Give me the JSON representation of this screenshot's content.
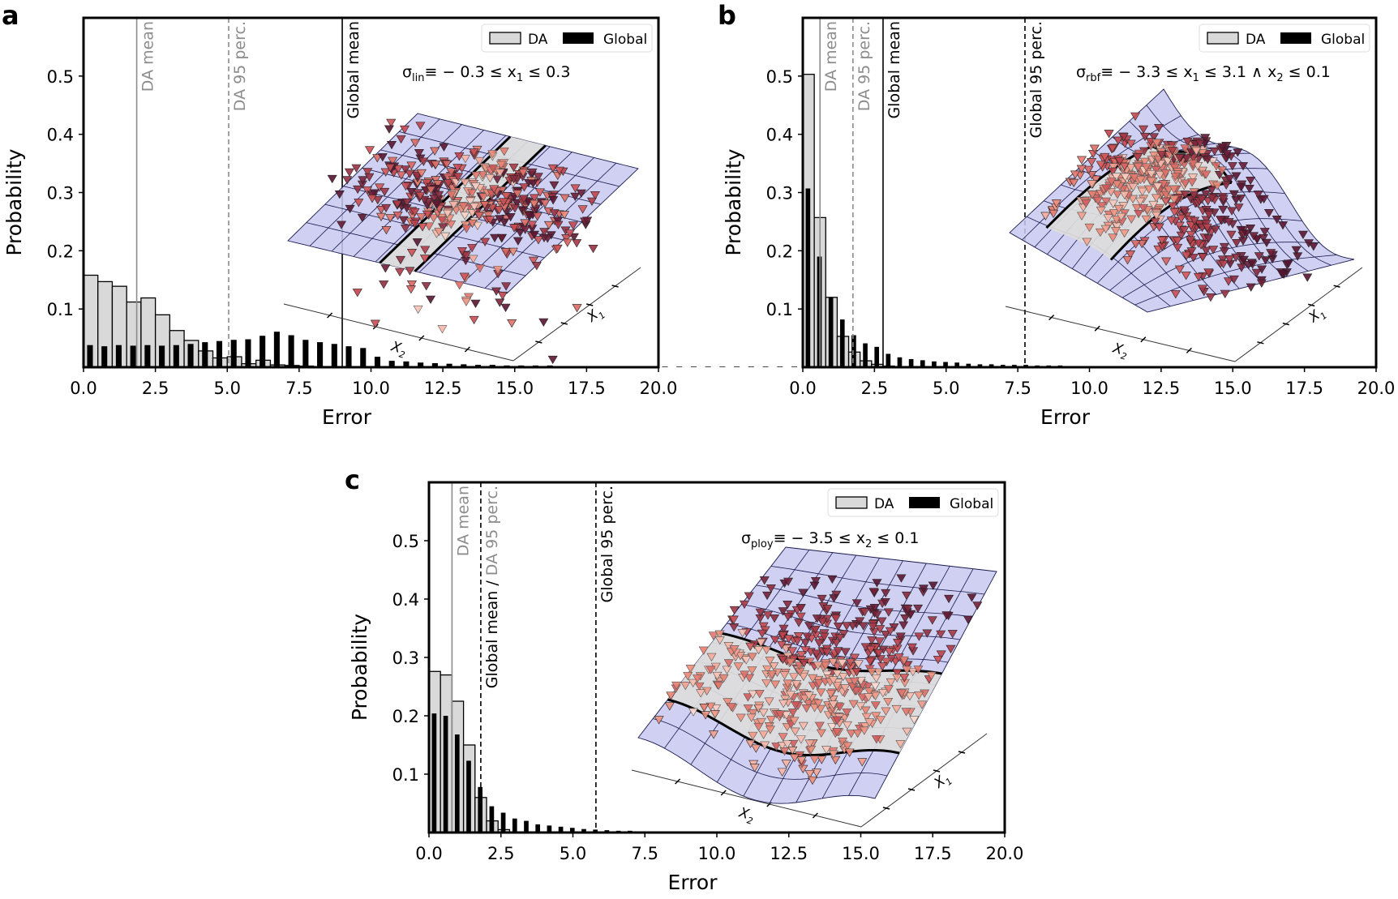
{
  "chart_data": [
    {
      "panel": "a",
      "type": "bar",
      "title": "",
      "xlabel": "Error",
      "ylabel": "Probability",
      "xlim": [
        0,
        20
      ],
      "ylim": [
        0,
        0.6
      ],
      "xticks": [
        "0.0",
        "2.5",
        "5.0",
        "7.5",
        "10.0",
        "12.5",
        "15.0",
        "17.5",
        "20.0"
      ],
      "yticks": [
        "0.1",
        "0.2",
        "0.3",
        "0.4",
        "0.5"
      ],
      "bin_width": 0.5,
      "legend": {
        "position": "top-right",
        "entries": [
          "DA",
          "Global"
        ]
      },
      "annotation": {
        "sigma": "σ",
        "sub": "lin",
        "rest": "≡ − 0.3 ≤ x",
        "sub1": "1",
        "rest2": " ≤ 0.3"
      },
      "series": [
        {
          "name": "DA",
          "values": [
            0.158,
            0.147,
            0.139,
            0.112,
            0.119,
            0.09,
            0.063,
            0.046,
            0.028,
            0.016,
            0.018,
            0.006,
            0.012,
            0.004,
            0.003,
            0.002,
            0.001,
            0.001,
            0.001,
            0.001,
            0.001,
            0.0,
            0.0,
            0.0,
            0.0,
            0.0,
            0.0,
            0.0,
            0.0,
            0.0
          ]
        },
        {
          "name": "Global",
          "values": [
            0.038,
            0.036,
            0.038,
            0.037,
            0.038,
            0.037,
            0.038,
            0.04,
            0.043,
            0.045,
            0.047,
            0.048,
            0.054,
            0.061,
            0.055,
            0.047,
            0.043,
            0.04,
            0.036,
            0.033,
            0.018,
            0.011,
            0.01,
            0.008,
            0.007,
            0.006,
            0.005,
            0.004,
            0.004,
            0.003,
            0.003,
            0.003,
            0.003,
            0.002,
            0.002,
            0.002,
            0.002,
            0.002,
            0.002,
            0.002,
            0.001,
            0.001,
            0.001,
            0.001,
            0.001,
            0.001,
            0.001,
            0.001,
            0.001,
            0.001,
            0.001,
            0.001,
            0.001,
            0.001,
            0.001,
            0.001,
            0.001,
            0.001,
            0.001,
            0.001
          ]
        }
      ],
      "vlines": [
        {
          "label": "DA mean",
          "x": 1.85,
          "style": "solid",
          "color": "#8c8c8c"
        },
        {
          "label": "DA 95 perc.",
          "x": 5.05,
          "style": "dashed",
          "color": "#8c8c8c"
        },
        {
          "label": "Global mean",
          "x": 9.0,
          "style": "solid",
          "color": "#000000"
        }
      ],
      "inset": {
        "kind": "plane",
        "axis_labels": [
          "X",
          "2",
          "X",
          "1"
        ]
      }
    },
    {
      "panel": "b",
      "type": "bar",
      "title": "",
      "xlabel": "Error",
      "ylabel": "Probability",
      "xlim": [
        0,
        20
      ],
      "ylim": [
        0,
        0.6
      ],
      "xticks": [
        "0.0",
        "2.5",
        "5.0",
        "7.5",
        "10.0",
        "12.5",
        "15.0",
        "17.5",
        "20.0"
      ],
      "yticks": [
        "0.1",
        "0.2",
        "0.3",
        "0.4",
        "0.5"
      ],
      "bin_width": 0.4,
      "legend": {
        "position": "top-right",
        "entries": [
          "DA",
          "Global"
        ]
      },
      "annotation": {
        "sigma": "σ",
        "sub": "rbf",
        "rest": "≡ − 3.3 ≤ x",
        "sub1": "1",
        "rest2": " ≤ 3.1 ∧ x",
        "sub2": "2",
        "rest3": " ≤ 0.1"
      },
      "series": [
        {
          "name": "DA",
          "values": [
            0.503,
            0.257,
            0.12,
            0.053,
            0.026,
            0.011,
            0.005,
            0.002,
            0.001,
            0.0
          ]
        },
        {
          "name": "Global",
          "values": [
            0.307,
            0.19,
            0.12,
            0.082,
            0.055,
            0.041,
            0.035,
            0.023,
            0.017,
            0.014,
            0.012,
            0.01,
            0.009,
            0.008,
            0.006,
            0.005,
            0.005,
            0.004,
            0.004,
            0.004,
            0.003,
            0.003,
            0.003,
            0.002,
            0.002,
            0.002,
            0.002,
            0.002,
            0.001,
            0.001,
            0.001,
            0.001,
            0.001,
            0.001,
            0.001,
            0.001,
            0.001,
            0.001,
            0.001,
            0.001
          ]
        }
      ],
      "vlines": [
        {
          "label": "DA mean",
          "x": 0.6,
          "style": "solid",
          "color": "#8c8c8c"
        },
        {
          "label": "DA 95 perc.",
          "x": 1.75,
          "style": "dashed",
          "color": "#8c8c8c"
        },
        {
          "label": "Global mean",
          "x": 2.8,
          "style": "solid",
          "color": "#000000"
        },
        {
          "label": "Global 95 perc.",
          "x": 7.75,
          "style": "dashed",
          "color": "#000000"
        }
      ],
      "inset": {
        "kind": "rbf",
        "axis_labels": [
          "X",
          "2",
          "X",
          "1"
        ]
      }
    },
    {
      "panel": "c",
      "type": "bar",
      "title": "",
      "xlabel": "Error",
      "ylabel": "Probability",
      "xlim": [
        0,
        20
      ],
      "ylim": [
        0,
        0.6
      ],
      "xticks": [
        "0.0",
        "2.5",
        "5.0",
        "7.5",
        "10.0",
        "12.5",
        "15.0",
        "17.5",
        "20.0"
      ],
      "yticks": [
        "0.1",
        "0.2",
        "0.3",
        "0.4",
        "0.5"
      ],
      "bin_width": 0.4,
      "legend": {
        "position": "top-right",
        "entries": [
          "DA",
          "Global"
        ]
      },
      "annotation": {
        "sigma": "σ",
        "sub": "ploy",
        "rest": "≡ − 3.5 ≤ x",
        "sub1": "2",
        "rest2": " ≤ 0.1"
      },
      "series": [
        {
          "name": "DA",
          "values": [
            0.276,
            0.27,
            0.225,
            0.15,
            0.06,
            0.02,
            0.005,
            0.001,
            0.0
          ]
        },
        {
          "name": "Global",
          "values": [
            0.204,
            0.2,
            0.168,
            0.123,
            0.078,
            0.045,
            0.034,
            0.024,
            0.02,
            0.014,
            0.012,
            0.01,
            0.008,
            0.006,
            0.005,
            0.004,
            0.003,
            0.003,
            0.002,
            0.002,
            0.002,
            0.001,
            0.001,
            0.001,
            0.001,
            0.001,
            0.001,
            0.001
          ]
        }
      ],
      "vlines": [
        {
          "label": "DA mean",
          "x": 0.8,
          "style": "solid",
          "color": "#8c8c8c"
        },
        {
          "label": "Global mean / DA 95 perc.",
          "x": 1.8,
          "style": "dashed",
          "color": "#000000",
          "label_parts": [
            "Global mean / ",
            "DA 95 perc."
          ]
        },
        {
          "label": "Global 95 perc.",
          "x": 5.8,
          "style": "dashed",
          "color": "#000000"
        }
      ],
      "inset": {
        "kind": "poly",
        "axis_labels": [
          "X",
          "2",
          "X",
          "1"
        ]
      }
    }
  ],
  "colors": {
    "da_fill": "#d9d9d9",
    "global_fill": "#000000",
    "surface": "#c8c8f0",
    "surface_da": "#dcdcdc",
    "da_line": "#8c8c8c"
  }
}
